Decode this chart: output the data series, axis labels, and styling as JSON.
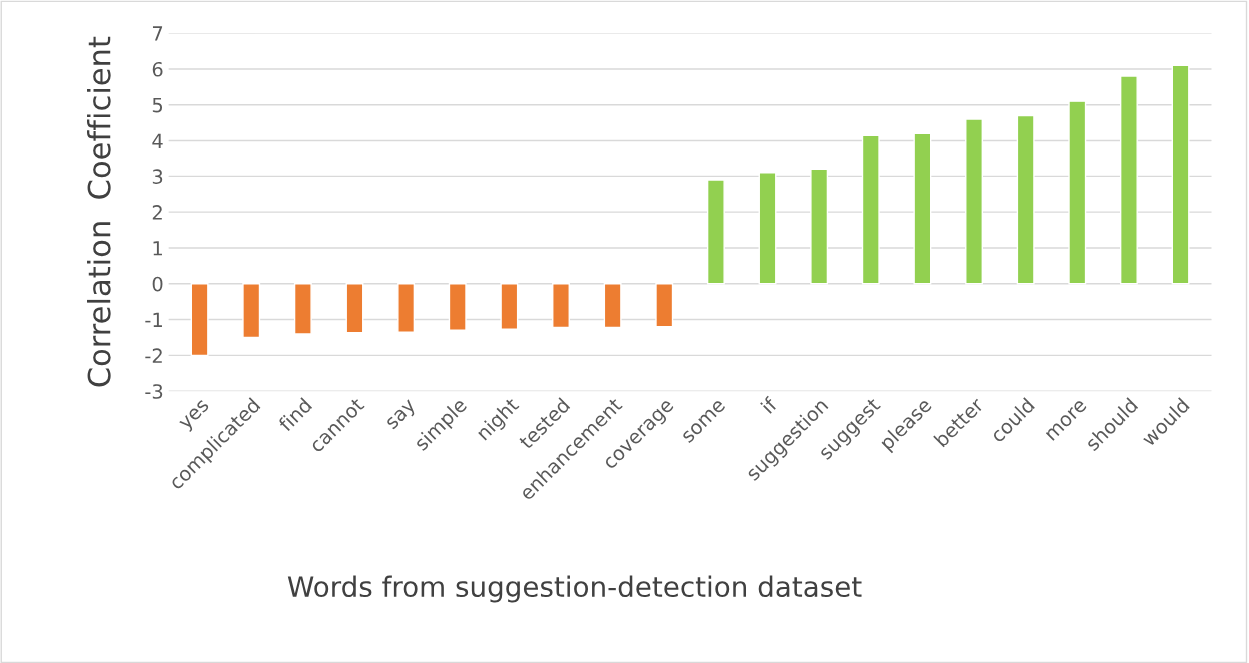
{
  "chart_data": {
    "type": "bar",
    "xlabel": "Words from suggestion-detection dataset",
    "ylabel": "Correlation  Coefficient",
    "categories": [
      "yes",
      "complicated",
      "find",
      "cannot",
      "say",
      "simple",
      "night",
      "tested",
      "enhancement",
      "coverage",
      "some",
      "if",
      "suggestion",
      "suggest",
      "please",
      "better",
      "could",
      "more",
      "should",
      "would"
    ],
    "values": [
      -2.0,
      -1.5,
      -1.4,
      -1.37,
      -1.35,
      -1.3,
      -1.27,
      -1.22,
      -1.22,
      -1.2,
      2.9,
      3.1,
      3.2,
      4.15,
      4.2,
      4.6,
      4.7,
      5.1,
      5.8,
      6.1
    ],
    "colors": [
      "#ed7d31",
      "#ed7d31",
      "#ed7d31",
      "#ed7d31",
      "#ed7d31",
      "#ed7d31",
      "#ed7d31",
      "#ed7d31",
      "#ed7d31",
      "#ed7d31",
      "#92d050",
      "#92d050",
      "#92d050",
      "#92d050",
      "#92d050",
      "#92d050",
      "#92d050",
      "#92d050",
      "#92d050",
      "#92d050"
    ],
    "ylim": [
      -3,
      7
    ],
    "yticks": [
      -3,
      -2,
      -1,
      0,
      1,
      2,
      3,
      4,
      5,
      6,
      7
    ],
    "grid": "y"
  }
}
